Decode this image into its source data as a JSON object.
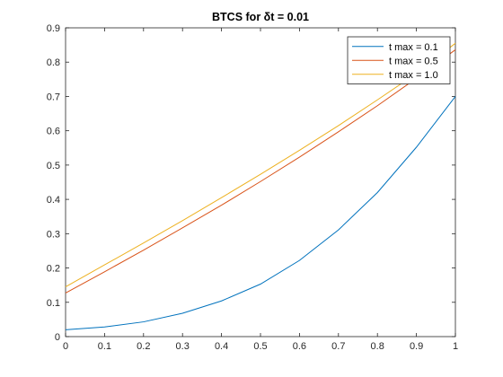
{
  "chart_data": {
    "type": "line",
    "title": "BTCS for δt = 0.01",
    "xlabel": "",
    "ylabel": "",
    "xlim": [
      0,
      1
    ],
    "ylim": [
      0,
      0.9
    ],
    "xticks": [
      "0",
      "0.1",
      "0.2",
      "0.3",
      "0.4",
      "0.5",
      "0.6",
      "0.7",
      "0.8",
      "0.9",
      "1"
    ],
    "yticks": [
      "0",
      "0.1",
      "0.2",
      "0.3",
      "0.4",
      "0.5",
      "0.6",
      "0.7",
      "0.8",
      "0.9"
    ],
    "grid": false,
    "legend_position": "top-right",
    "x": [
      0,
      0.1,
      0.2,
      0.3,
      0.4,
      0.5,
      0.6,
      0.7,
      0.8,
      0.9,
      1.0
    ],
    "series": [
      {
        "name": "t max = 0.1",
        "color": "#0072BD",
        "values": [
          0.02,
          0.028,
          0.043,
          0.068,
          0.104,
          0.153,
          0.222,
          0.311,
          0.42,
          0.552,
          0.7
        ]
      },
      {
        "name": "t max = 0.5",
        "color": "#D95319",
        "values": [
          0.127,
          0.189,
          0.252,
          0.317,
          0.383,
          0.452,
          0.523,
          0.597,
          0.673,
          0.753,
          0.836
        ]
      },
      {
        "name": "t max = 1.0",
        "color": "#EDB120",
        "values": [
          0.145,
          0.209,
          0.273,
          0.338,
          0.405,
          0.473,
          0.543,
          0.615,
          0.69,
          0.767,
          0.855
        ]
      }
    ]
  }
}
